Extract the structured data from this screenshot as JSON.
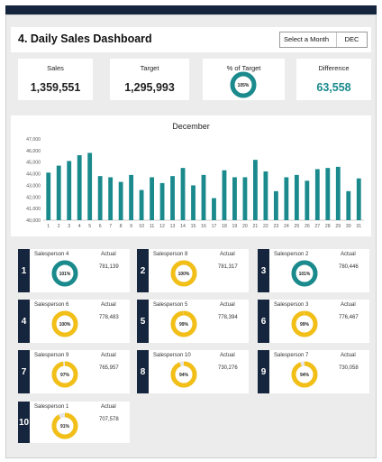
{
  "header": {
    "title": "4. Daily Sales Dashboard",
    "select_label": "Select a Month",
    "selected_month": "DEC"
  },
  "kpis": {
    "sales": {
      "label": "Sales",
      "value": "1,359,551"
    },
    "target": {
      "label": "Target",
      "value": "1,295,993"
    },
    "pct_target": {
      "label": "% of Target",
      "value": "105%",
      "fraction": 1.05
    },
    "difference": {
      "label": "Difference",
      "value": "63,558"
    }
  },
  "colors": {
    "navy": "#15253d",
    "teal": "#1a8a8d",
    "gold": "#f2bf18",
    "track": "#e6e6e6"
  },
  "chart_data": {
    "type": "bar",
    "title": "December",
    "categories": [
      "1",
      "2",
      "3",
      "4",
      "5",
      "6",
      "7",
      "8",
      "9",
      "10",
      "11",
      "12",
      "13",
      "14",
      "15",
      "16",
      "17",
      "18",
      "19",
      "20",
      "21",
      "22",
      "23",
      "24",
      "25",
      "26",
      "27",
      "28",
      "29",
      "30",
      "31"
    ],
    "values": [
      44100,
      44700,
      45100,
      45600,
      45800,
      43800,
      43700,
      43300,
      43900,
      42600,
      43700,
      43200,
      43800,
      44500,
      43000,
      43900,
      41900,
      44300,
      43700,
      43700,
      45200,
      44200,
      42500,
      43700,
      43900,
      43400,
      44400,
      44500,
      44600,
      42500,
      43600
    ],
    "ylim": [
      40000,
      47000
    ],
    "yticks": [
      "40,000",
      "41,000",
      "42,000",
      "43,000",
      "44,000",
      "45,000",
      "46,000",
      "47,000"
    ],
    "grid": false,
    "color": "#1a8a8d"
  },
  "salespeople": [
    {
      "rank": "1",
      "name": "Salesperson 4",
      "actual_label": "Actual",
      "actual": "781,139",
      "pct": "101%",
      "fraction": 1.01,
      "color": "#1a8a8d"
    },
    {
      "rank": "2",
      "name": "Salesperson 8",
      "actual_label": "Actual",
      "actual": "781,317",
      "pct": "100%",
      "fraction": 1.0,
      "color": "#f2bf18"
    },
    {
      "rank": "3",
      "name": "Salesperson 2",
      "actual_label": "Actual",
      "actual": "780,446",
      "pct": "101%",
      "fraction": 1.01,
      "color": "#1a8a8d"
    },
    {
      "rank": "4",
      "name": "Salesperson 6",
      "actual_label": "Actual",
      "actual": "778,483",
      "pct": "100%",
      "fraction": 1.0,
      "color": "#f2bf18"
    },
    {
      "rank": "5",
      "name": "Salesperson 5",
      "actual_label": "Actual",
      "actual": "778,394",
      "pct": "99%",
      "fraction": 0.99,
      "color": "#f2bf18"
    },
    {
      "rank": "6",
      "name": "Salesperson 3",
      "actual_label": "Actual",
      "actual": "776,467",
      "pct": "99%",
      "fraction": 0.99,
      "color": "#f2bf18"
    },
    {
      "rank": "7",
      "name": "Salesperson 9",
      "actual_label": "Actual",
      "actual": "765,957",
      "pct": "97%",
      "fraction": 0.97,
      "color": "#f2bf18"
    },
    {
      "rank": "8",
      "name": "Salesperson 10",
      "actual_label": "Actual",
      "actual": "730,276",
      "pct": "94%",
      "fraction": 0.94,
      "color": "#f2bf18"
    },
    {
      "rank": "9",
      "name": "Salesperson 7",
      "actual_label": "Actual",
      "actual": "730,058",
      "pct": "94%",
      "fraction": 0.94,
      "color": "#f2bf18"
    },
    {
      "rank": "10",
      "name": "Salesperson 1",
      "actual_label": "Actual",
      "actual": "707,578",
      "pct": "91%",
      "fraction": 0.91,
      "color": "#f2bf18"
    }
  ]
}
